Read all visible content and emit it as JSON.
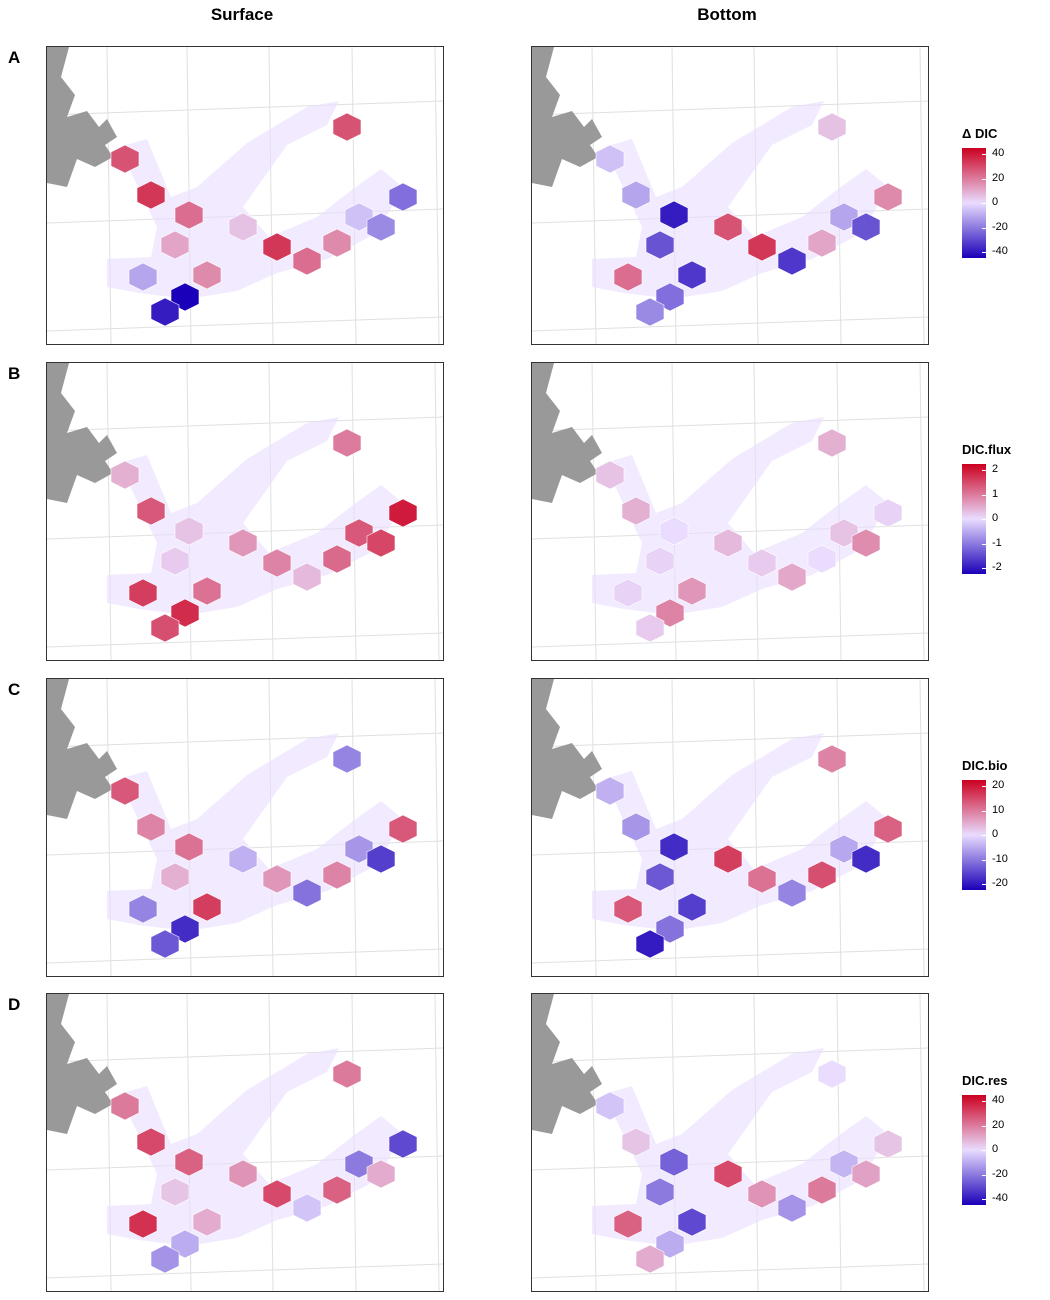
{
  "column_titles": [
    "Surface",
    "Bottom"
  ],
  "colors": {
    "high": "#cc0020",
    "mid": "#d8c8ff",
    "zero": "#e9dcff",
    "low": "#1a00b8",
    "missing": "#666666",
    "land": "#999999",
    "grid": "#e0e0e0"
  },
  "chart_data": [
    {
      "type": "heatmap",
      "row_label": "A",
      "legend": {
        "title": "Δ DIC",
        "ticks": [
          "40",
          "20",
          "0",
          "-20",
          "-40"
        ],
        "range": [
          -40,
          40
        ]
      },
      "surface": {
        "cells": [
          {
            "v": 25
          },
          {
            "v": 30
          },
          {
            "v": 10
          },
          {
            "v": 20
          },
          {
            "v": 15
          },
          {
            "v": -40
          },
          {
            "v": -35
          },
          {
            "v": -10
          },
          {
            "v": 5
          },
          {
            "v": 30
          },
          {
            "v": 20
          },
          {
            "v": 15
          },
          {
            "v": -5
          },
          {
            "v": -15
          },
          {
            "v": -20
          },
          {
            "v": 25
          }
        ]
      },
      "bottom": {
        "cells": [
          {
            "v": -5
          },
          {
            "v": -10
          },
          {
            "v": -25
          },
          {
            "v": -35
          },
          {
            "v": -30
          },
          {
            "v": -20
          },
          {
            "v": -15
          },
          {
            "v": 20
          },
          {
            "v": 25
          },
          {
            "v": 30
          },
          {
            "v": -30
          },
          {
            "v": 10
          },
          {
            "v": -10
          },
          {
            "v": -25
          },
          {
            "v": 15
          },
          {
            "v": 5
          }
        ]
      }
    },
    {
      "type": "heatmap",
      "row_label": "B",
      "legend": {
        "title": "DIC.flux",
        "ticks": [
          "2",
          "1",
          "0",
          "-1",
          "-2"
        ],
        "range": [
          -2.5,
          2.5
        ]
      },
      "surface": {
        "cells": [
          {
            "v": 0.5
          },
          {
            "v": 1.5
          },
          {
            "v": 0.2
          },
          {
            "v": 0.3
          },
          {
            "v": 1.2
          },
          {
            "v": 2.0
          },
          {
            "v": 1.6
          },
          {
            "v": 1.8
          },
          {
            "v": 0.8
          },
          {
            "v": 1.0
          },
          {
            "v": 0.4
          },
          {
            "v": 1.3
          },
          {
            "v": 1.5
          },
          {
            "v": 1.7
          },
          {
            "v": 2.2
          },
          {
            "v": 1.1
          }
        ]
      },
      "bottom": {
        "cells": [
          {
            "v": 0.3
          },
          {
            "v": 0.5
          },
          {
            "v": 0.1
          },
          {
            "v": 0.0
          },
          {
            "v": 0.8
          },
          {
            "v": 1.0
          },
          {
            "v": 0.2
          },
          {
            "v": 0.1
          },
          {
            "v": 0.4
          },
          {
            "v": 0.2
          },
          {
            "v": 0.6
          },
          {
            "v": 0.0
          },
          {
            "v": 0.3
          },
          {
            "v": 0.9
          },
          {
            "v": 0.1
          },
          {
            "v": 0.5
          }
        ]
      }
    },
    {
      "type": "heatmap",
      "row_label": "C",
      "legend": {
        "title": "DIC.bio",
        "ticks": [
          "20",
          "10",
          "0",
          "-10",
          "-20"
        ],
        "range": [
          -25,
          25
        ]
      },
      "surface": {
        "cells": [
          {
            "v": 15
          },
          {
            "v": 10
          },
          {
            "v": 5
          },
          {
            "v": 12
          },
          {
            "v": 18
          },
          {
            "v": -20
          },
          {
            "v": -15
          },
          {
            "v": -10
          },
          {
            "v": -5
          },
          {
            "v": 8
          },
          {
            "v": -12
          },
          {
            "v": 10
          },
          {
            "v": -8
          },
          {
            "v": -18
          },
          {
            "v": 15
          },
          {
            "v": -10
          }
        ]
      },
      "bottom": {
        "cells": [
          {
            "v": -5
          },
          {
            "v": -8
          },
          {
            "v": -15
          },
          {
            "v": -20
          },
          {
            "v": -18
          },
          {
            "v": -12
          },
          {
            "v": -22
          },
          {
            "v": 15
          },
          {
            "v": 18
          },
          {
            "v": 12
          },
          {
            "v": -10
          },
          {
            "v": 16
          },
          {
            "v": -6
          },
          {
            "v": -20
          },
          {
            "v": 14
          },
          {
            "v": 10
          }
        ]
      }
    },
    {
      "type": "heatmap",
      "row_label": "D",
      "legend": {
        "title": "DIC.res",
        "ticks": [
          "40",
          "20",
          "0",
          "-20",
          "-40"
        ],
        "range": [
          -45,
          45
        ]
      },
      "surface": {
        "cells": [
          {
            "v": 20
          },
          {
            "v": 30
          },
          {
            "v": 5
          },
          {
            "v": 25
          },
          {
            "v": 10
          },
          {
            "v": -10
          },
          {
            "v": -15
          },
          {
            "v": 35
          },
          {
            "v": 15
          },
          {
            "v": 30
          },
          {
            "v": -5
          },
          {
            "v": 25
          },
          {
            "v": -20
          },
          {
            "v": 10
          },
          {
            "v": -30
          },
          {
            "v": 20
          }
        ]
      },
      "bottom": {
        "cells": [
          {
            "v": -5
          },
          {
            "v": 5
          },
          {
            "v": -20
          },
          {
            "v": -25
          },
          {
            "v": -30
          },
          {
            "v": -10
          },
          {
            "v": 10
          },
          {
            "v": 25
          },
          {
            "v": 30
          },
          {
            "v": 15
          },
          {
            "v": -15
          },
          {
            "v": 20
          },
          {
            "v": -8
          },
          {
            "v": 12
          },
          {
            "v": 5
          },
          {
            "v": 0
          }
        ]
      }
    }
  ]
}
